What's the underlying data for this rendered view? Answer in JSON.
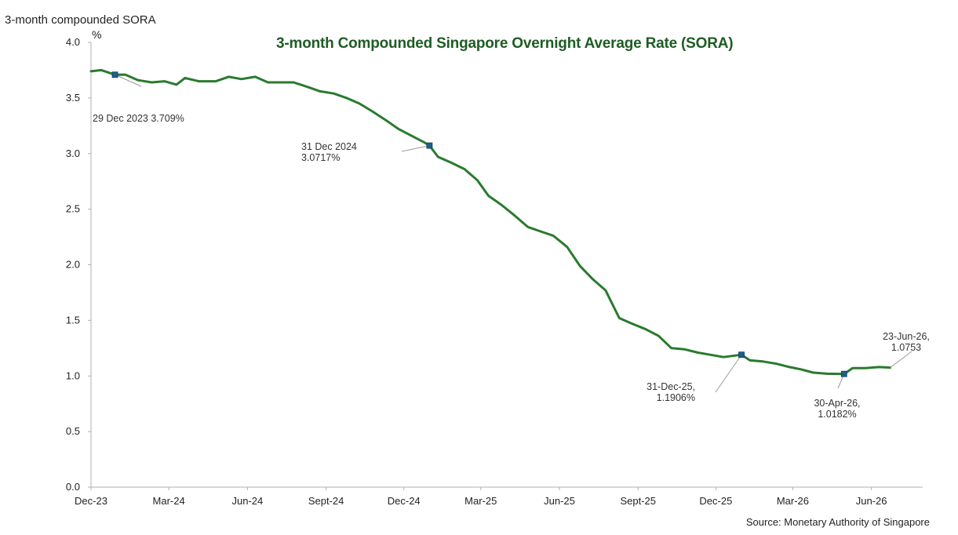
{
  "header": {
    "corner_title": "3-month compounded SORA",
    "unit": "%",
    "title": "3-month Compounded Singapore Overnight Average Rate (SORA)",
    "source": "Source: Monetary Authority of Singapore"
  },
  "colors": {
    "line": "#2a7a2e",
    "title": "#1e5c24",
    "marker": "#1f5f8b",
    "axis": "#b0b0b0",
    "leader": "#9a9a9a"
  },
  "chart_data": {
    "type": "line",
    "title": "3-month Compounded Singapore Overnight Average Rate (SORA)",
    "ylabel": "%",
    "ylim": [
      0,
      4.0
    ],
    "yticks": [
      "0.0",
      "0.5",
      "1.0",
      "1.5",
      "2.0",
      "2.5",
      "3.0",
      "3.5",
      "4.0"
    ],
    "xlim": [
      "2023-12-01",
      "2026-07-31"
    ],
    "xticks": [
      {
        "date": "2023-12-01",
        "label": "Dec-23"
      },
      {
        "date": "2024-03-01",
        "label": "Mar-24"
      },
      {
        "date": "2024-06-01",
        "label": "Jun-24"
      },
      {
        "date": "2024-09-01",
        "label": "Sept-24"
      },
      {
        "date": "2024-12-01",
        "label": "Dec-24"
      },
      {
        "date": "2025-03-01",
        "label": "Mar-25"
      },
      {
        "date": "2025-06-01",
        "label": "Jun-25"
      },
      {
        "date": "2025-09-01",
        "label": "Sept-25"
      },
      {
        "date": "2025-12-01",
        "label": "Dec-25"
      },
      {
        "date": "2026-03-01",
        "label": "Mar-26"
      },
      {
        "date": "2026-06-01",
        "label": "Jun-26"
      }
    ],
    "grid": false,
    "series": [
      {
        "points": [
          [
            "2023-12-01",
            3.74
          ],
          [
            "2023-12-13",
            3.75
          ],
          [
            "2023-12-29",
            3.709
          ],
          [
            "2024-01-10",
            3.71
          ],
          [
            "2024-01-25",
            3.66
          ],
          [
            "2024-02-10",
            3.64
          ],
          [
            "2024-02-25",
            3.65
          ],
          [
            "2024-03-10",
            3.62
          ],
          [
            "2024-03-20",
            3.68
          ],
          [
            "2024-04-05",
            3.65
          ],
          [
            "2024-04-25",
            3.65
          ],
          [
            "2024-05-10",
            3.69
          ],
          [
            "2024-05-25",
            3.67
          ],
          [
            "2024-06-10",
            3.69
          ],
          [
            "2024-06-25",
            3.64
          ],
          [
            "2024-07-10",
            3.64
          ],
          [
            "2024-07-25",
            3.64
          ],
          [
            "2024-08-10",
            3.6
          ],
          [
            "2024-08-25",
            3.56
          ],
          [
            "2024-09-10",
            3.54
          ],
          [
            "2024-09-25",
            3.5
          ],
          [
            "2024-10-10",
            3.45
          ],
          [
            "2024-10-25",
            3.38
          ],
          [
            "2024-11-10",
            3.3
          ],
          [
            "2024-11-25",
            3.22
          ],
          [
            "2024-12-10",
            3.16
          ],
          [
            "2024-12-25",
            3.1
          ],
          [
            "2024-12-31",
            3.0717
          ],
          [
            "2025-01-10",
            2.97
          ],
          [
            "2025-01-25",
            2.92
          ],
          [
            "2025-02-10",
            2.86
          ],
          [
            "2025-02-25",
            2.76
          ],
          [
            "2025-03-10",
            2.62
          ],
          [
            "2025-03-25",
            2.54
          ],
          [
            "2025-04-10",
            2.44
          ],
          [
            "2025-04-25",
            2.34
          ],
          [
            "2025-05-10",
            2.3
          ],
          [
            "2025-05-25",
            2.26
          ],
          [
            "2025-06-10",
            2.16
          ],
          [
            "2025-06-25",
            1.99
          ],
          [
            "2025-07-10",
            1.87
          ],
          [
            "2025-07-25",
            1.77
          ],
          [
            "2025-08-10",
            1.52
          ],
          [
            "2025-08-25",
            1.47
          ],
          [
            "2025-09-10",
            1.42
          ],
          [
            "2025-09-25",
            1.36
          ],
          [
            "2025-10-10",
            1.25
          ],
          [
            "2025-10-25",
            1.24
          ],
          [
            "2025-11-10",
            1.21
          ],
          [
            "2025-11-25",
            1.19
          ],
          [
            "2025-12-10",
            1.17
          ],
          [
            "2025-12-31",
            1.1906
          ],
          [
            "2026-01-10",
            1.14
          ],
          [
            "2026-01-25",
            1.13
          ],
          [
            "2026-02-10",
            1.11
          ],
          [
            "2026-02-25",
            1.08
          ],
          [
            "2026-03-10",
            1.06
          ],
          [
            "2026-03-25",
            1.03
          ],
          [
            "2026-04-10",
            1.02
          ],
          [
            "2026-04-30",
            1.0182
          ],
          [
            "2026-05-10",
            1.07
          ],
          [
            "2026-05-25",
            1.07
          ],
          [
            "2026-06-10",
            1.08
          ],
          [
            "2026-06-23",
            1.0753
          ]
        ]
      }
    ],
    "markers": [
      {
        "date": "2023-12-29",
        "value": 3.709
      },
      {
        "date": "2024-12-31",
        "value": 3.0717
      },
      {
        "date": "2025-12-31",
        "value": 1.1906
      },
      {
        "date": "2026-04-30",
        "value": 1.0182
      }
    ],
    "annotations": [
      {
        "date": "2023-12-29",
        "value": 3.709,
        "lines": [
          "29 Dec 2023 3.709%"
        ]
      },
      {
        "date": "2024-12-31",
        "value": 3.0717,
        "lines": [
          "31 Dec 2024",
          "3.0717%"
        ]
      },
      {
        "date": "2025-12-31",
        "value": 1.1906,
        "lines": [
          "31-Dec-25,",
          "1.1906%"
        ]
      },
      {
        "date": "2026-04-30",
        "value": 1.0182,
        "lines": [
          "30-Apr-26,",
          "1.0182%"
        ]
      },
      {
        "date": "2026-06-23",
        "value": 1.0753,
        "lines": [
          "23-Jun-26,",
          "1.0753"
        ]
      }
    ]
  }
}
